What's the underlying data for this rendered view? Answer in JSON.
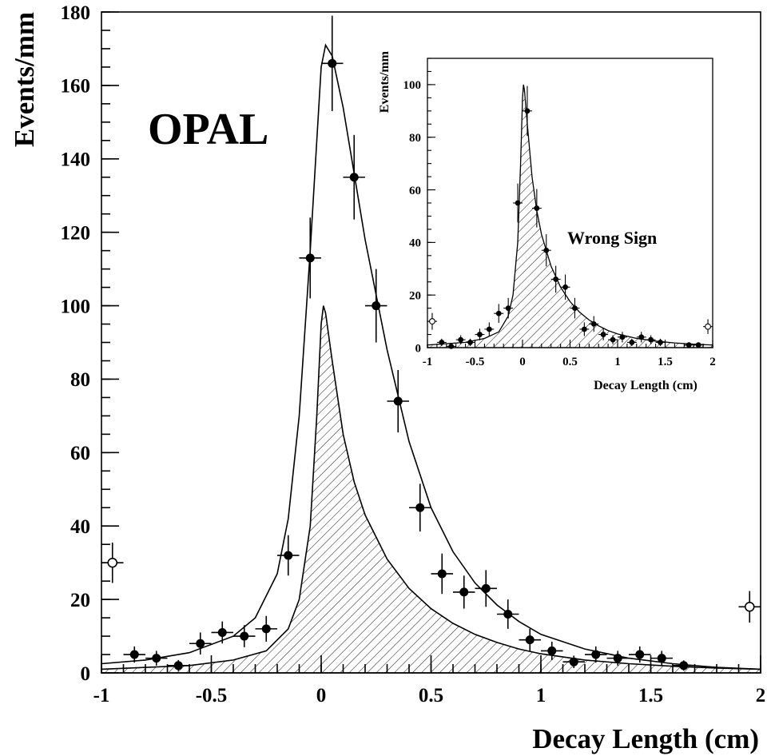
{
  "chart_data": [
    {
      "id": "main",
      "type": "scatter",
      "experiment_label": "OPAL",
      "xlabel": "Decay Length (cm)",
      "ylabel": "Events/mm",
      "xlim": [
        -1,
        2
      ],
      "ylim": [
        0,
        180
      ],
      "xticks": [
        "-1",
        "-0.5",
        "0",
        "0.5",
        "1",
        "1.5",
        "2"
      ],
      "xtick_values": [
        -1,
        -0.5,
        0,
        0.5,
        1,
        1.5,
        2
      ],
      "yticks": [
        "0",
        "20",
        "40",
        "60",
        "80",
        "100",
        "120",
        "140",
        "160",
        "180"
      ],
      "ytick_values": [
        0,
        20,
        40,
        60,
        80,
        100,
        120,
        140,
        160,
        180
      ],
      "grid": false,
      "points": [
        {
          "x": -0.85,
          "y": 5,
          "err": 2.2,
          "xerr": 0.05
        },
        {
          "x": -0.75,
          "y": 4,
          "err": 2,
          "xerr": 0.05
        },
        {
          "x": -0.65,
          "y": 2,
          "err": 1.5,
          "xerr": 0.05
        },
        {
          "x": -0.55,
          "y": 8,
          "err": 3,
          "xerr": 0.05
        },
        {
          "x": -0.45,
          "y": 11,
          "err": 3,
          "xerr": 0.05
        },
        {
          "x": -0.35,
          "y": 10,
          "err": 3,
          "xerr": 0.05
        },
        {
          "x": -0.25,
          "y": 12,
          "err": 3.5,
          "xerr": 0.05
        },
        {
          "x": -0.15,
          "y": 32,
          "err": 5.5,
          "xerr": 0.05
        },
        {
          "x": -0.05,
          "y": 113,
          "err": 11,
          "xerr": 0.05
        },
        {
          "x": 0.05,
          "y": 166,
          "err": 13,
          "xerr": 0.05
        },
        {
          "x": 0.15,
          "y": 135,
          "err": 11.5,
          "xerr": 0.05
        },
        {
          "x": 0.25,
          "y": 100,
          "err": 10,
          "xerr": 0.05
        },
        {
          "x": 0.35,
          "y": 74,
          "err": 8.5,
          "xerr": 0.05
        },
        {
          "x": 0.45,
          "y": 45,
          "err": 6.5,
          "xerr": 0.05
        },
        {
          "x": 0.55,
          "y": 27,
          "err": 5.5,
          "xerr": 0.05
        },
        {
          "x": 0.65,
          "y": 22,
          "err": 4.5,
          "xerr": 0.05
        },
        {
          "x": 0.75,
          "y": 23,
          "err": 5,
          "xerr": 0.05
        },
        {
          "x": 0.85,
          "y": 16,
          "err": 4,
          "xerr": 0.05
        },
        {
          "x": 0.95,
          "y": 9,
          "err": 3,
          "xerr": 0.05
        },
        {
          "x": 1.05,
          "y": 6,
          "err": 2.5,
          "xerr": 0.05
        },
        {
          "x": 1.15,
          "y": 3,
          "err": 1.7,
          "xerr": 0.05
        },
        {
          "x": 1.25,
          "y": 5,
          "err": 2.2,
          "xerr": 0.05
        },
        {
          "x": 1.35,
          "y": 4,
          "err": 2,
          "xerr": 0.05
        },
        {
          "x": 1.45,
          "y": 5,
          "err": 2.2,
          "xerr": 0.05
        },
        {
          "x": 1.55,
          "y": 4,
          "err": 2,
          "xerr": 0.05
        },
        {
          "x": 1.65,
          "y": 2,
          "err": 1.4,
          "xerr": 0.05
        }
      ],
      "overflow_points": [
        {
          "x": -0.95,
          "y": 30,
          "err": 5.5,
          "xerr": 0.05
        },
        {
          "x": 1.95,
          "y": 18,
          "err": 4.3,
          "xerr": 0.05
        }
      ],
      "total_curve": {
        "x": [
          -1,
          -0.8,
          -0.6,
          -0.4,
          -0.3,
          -0.2,
          -0.15,
          -0.1,
          -0.05,
          0,
          0.02,
          0.05,
          0.1,
          0.15,
          0.2,
          0.3,
          0.4,
          0.5,
          0.6,
          0.7,
          0.8,
          0.9,
          1.0,
          1.2,
          1.4,
          1.6,
          1.8,
          2.0
        ],
        "y": [
          2.5,
          3.5,
          5.5,
          10,
          15,
          27,
          42,
          70,
          115,
          165,
          171,
          168,
          154,
          136,
          118,
          88,
          63,
          45,
          33,
          24.5,
          18.5,
          14,
          10.5,
          6.5,
          4,
          2.5,
          1.5,
          1
        ]
      },
      "background_curve": {
        "x": [
          -1,
          -0.6,
          -0.4,
          -0.25,
          -0.15,
          -0.1,
          -0.05,
          -0.02,
          0,
          0.01,
          0.02,
          0.05,
          0.1,
          0.15,
          0.2,
          0.3,
          0.4,
          0.5,
          0.6,
          0.7,
          0.8,
          0.9,
          1.0,
          1.2,
          1.4,
          1.6,
          1.8,
          2.0
        ],
        "y": [
          1,
          2,
          3.5,
          6,
          12,
          20,
          40,
          70,
          95,
          100,
          98,
          85,
          65,
          52,
          43,
          31,
          23,
          17.5,
          13.5,
          10.5,
          8.3,
          6.5,
          5.2,
          3.5,
          2.5,
          1.8,
          1.3,
          1
        ]
      }
    },
    {
      "id": "inset",
      "type": "scatter",
      "annotation": "Wrong Sign",
      "xlabel": "Decay Length (cm)",
      "ylabel": "Events/mm",
      "xlim": [
        -1,
        2
      ],
      "ylim": [
        0,
        110
      ],
      "xticks": [
        "-1",
        "-0.5",
        "0",
        "0.5",
        "1",
        "1.5",
        "2"
      ],
      "xtick_values": [
        -1,
        -0.5,
        0,
        0.5,
        1,
        1.5,
        2
      ],
      "yticks": [
        "0",
        "20",
        "40",
        "60",
        "80",
        "100"
      ],
      "ytick_values": [
        0,
        20,
        40,
        60,
        80,
        100
      ],
      "grid": false,
      "points": [
        {
          "x": -0.85,
          "y": 2,
          "err": 1.4
        },
        {
          "x": -0.75,
          "y": 0.5,
          "err": 0.7
        },
        {
          "x": -0.65,
          "y": 3,
          "err": 1.7
        },
        {
          "x": -0.55,
          "y": 2,
          "err": 1.4
        },
        {
          "x": -0.45,
          "y": 5,
          "err": 2.2
        },
        {
          "x": -0.35,
          "y": 7,
          "err": 2.6
        },
        {
          "x": -0.25,
          "y": 13,
          "err": 3.6
        },
        {
          "x": -0.15,
          "y": 15,
          "err": 3.9
        },
        {
          "x": -0.05,
          "y": 55,
          "err": 7.4
        },
        {
          "x": 0.05,
          "y": 90,
          "err": 9.5
        },
        {
          "x": 0.15,
          "y": 53,
          "err": 7.3
        },
        {
          "x": 0.25,
          "y": 37,
          "err": 6.1
        },
        {
          "x": 0.35,
          "y": 26,
          "err": 5.1
        },
        {
          "x": 0.45,
          "y": 23,
          "err": 4.8
        },
        {
          "x": 0.55,
          "y": 15,
          "err": 3.9
        },
        {
          "x": 0.65,
          "y": 7,
          "err": 2.6
        },
        {
          "x": 0.75,
          "y": 9,
          "err": 3
        },
        {
          "x": 0.85,
          "y": 5,
          "err": 2.2
        },
        {
          "x": 0.95,
          "y": 3,
          "err": 1.7
        },
        {
          "x": 1.05,
          "y": 4,
          "err": 2
        },
        {
          "x": 1.15,
          "y": 2,
          "err": 1.4
        },
        {
          "x": 1.25,
          "y": 4,
          "err": 2
        },
        {
          "x": 1.35,
          "y": 3,
          "err": 1.7
        },
        {
          "x": 1.45,
          "y": 2,
          "err": 1.4
        },
        {
          "x": 1.75,
          "y": 1,
          "err": 1
        },
        {
          "x": 1.85,
          "y": 1,
          "err": 1
        }
      ],
      "overflow_points": [
        {
          "x": -0.95,
          "y": 10,
          "err": 3.2
        },
        {
          "x": 1.95,
          "y": 8,
          "err": 2.8
        }
      ],
      "total_curve": {
        "x": [
          -1,
          -0.6,
          -0.4,
          -0.25,
          -0.15,
          -0.1,
          -0.05,
          -0.02,
          0,
          0.01,
          0.02,
          0.05,
          0.1,
          0.15,
          0.2,
          0.3,
          0.4,
          0.5,
          0.6,
          0.7,
          0.8,
          0.9,
          1.0,
          1.2,
          1.4,
          1.6,
          1.8,
          2.0
        ],
        "y": [
          1,
          2,
          3.5,
          6,
          12,
          20,
          40,
          70,
          95,
          100,
          98,
          85,
          65,
          52,
          43,
          31,
          23,
          17.5,
          13.5,
          10.5,
          8.3,
          6.5,
          5.2,
          3.5,
          2.5,
          1.8,
          1.3,
          1
        ]
      }
    }
  ]
}
